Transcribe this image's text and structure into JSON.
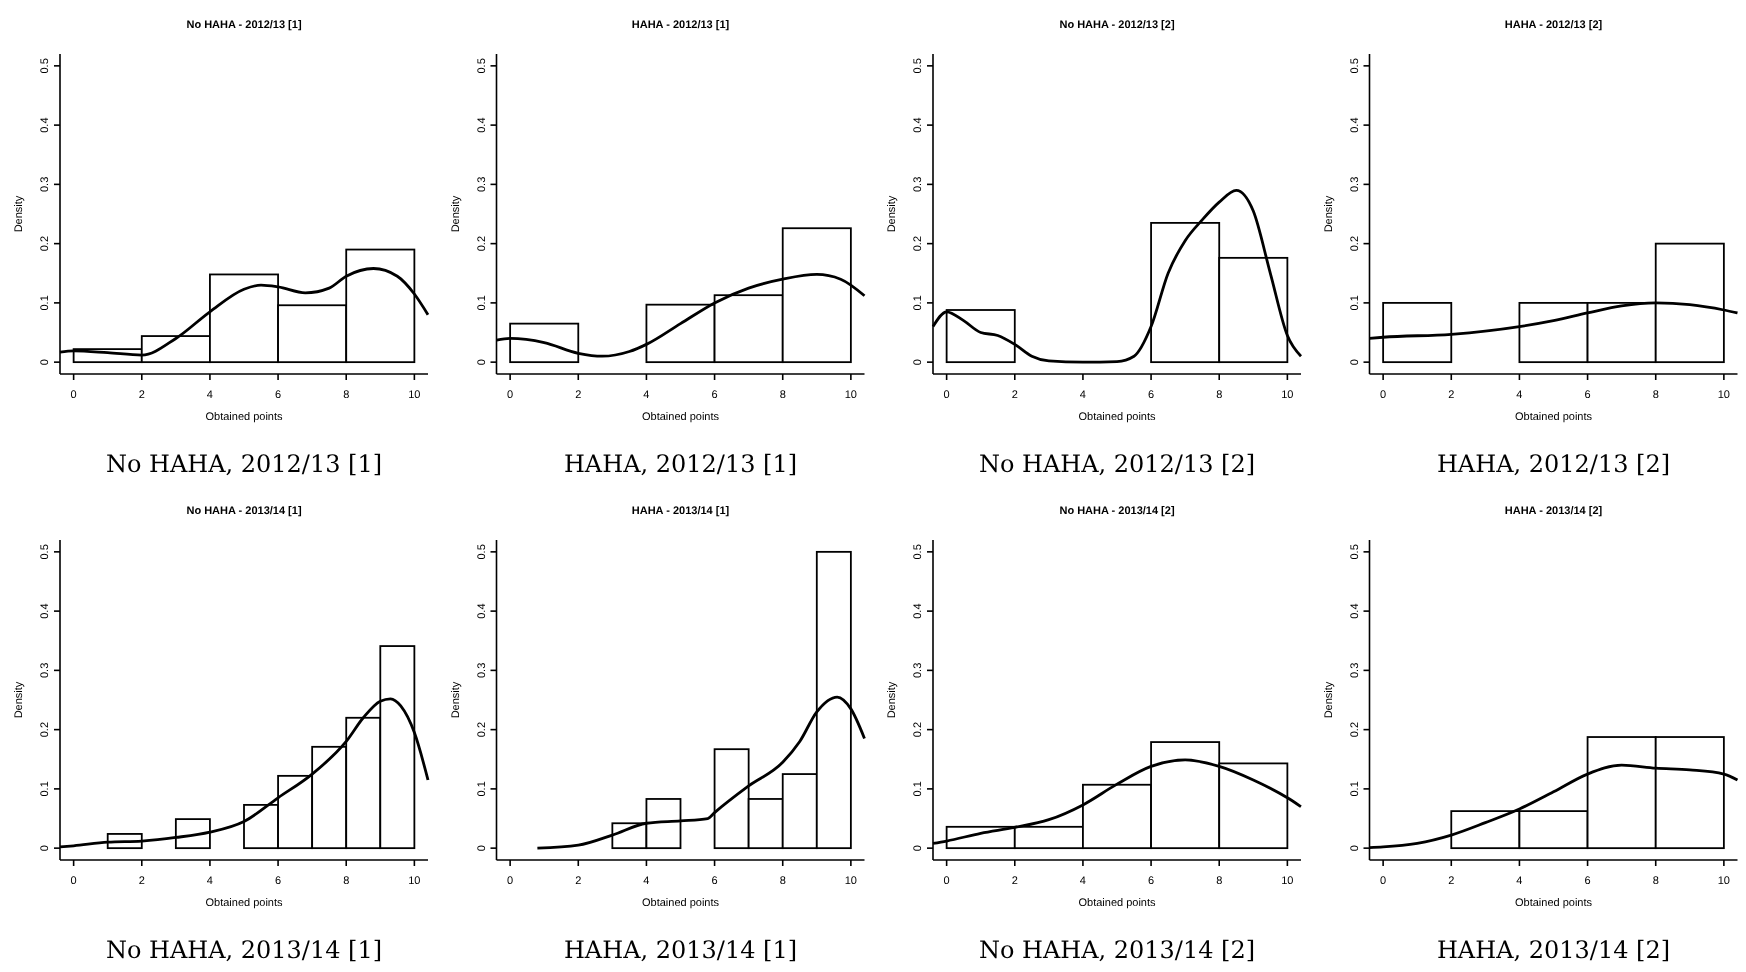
{
  "chart_data": [
    {
      "type": "histogram",
      "title": "No HAHA - 2012/13 [1]",
      "xlabel": "Obtained points",
      "ylabel": "Density",
      "annotations": [
        "No HAHA, 2012/13 [1]"
      ],
      "xlim": [
        -0.4,
        10.4
      ],
      "ylim": [
        -0.02,
        0.52
      ],
      "xticks": [
        0,
        2,
        4,
        6,
        8,
        10
      ],
      "yticks": [
        0,
        0.1,
        0.2,
        0.3,
        0.4,
        0.5
      ],
      "color": "#ffffff",
      "bins": [
        0,
        2,
        4,
        6,
        8,
        10
      ],
      "values": [
        0.022,
        0.044,
        0.148,
        0.096,
        0.19
      ],
      "series": [
        {
          "type": "line",
          "color": "#000000",
          "x": [
            -0.4,
            0,
            1,
            2,
            3,
            4,
            5,
            5.5,
            6,
            6.8,
            7.5,
            8,
            8.8,
            9.5,
            10,
            10.4
          ],
          "values": [
            0.017,
            0.019,
            0.016,
            0.012,
            0.04,
            0.085,
            0.123,
            0.13,
            0.127,
            0.117,
            0.125,
            0.145,
            0.158,
            0.145,
            0.115,
            0.08
          ]
        }
      ]
    },
    {
      "type": "histogram",
      "title": "HAHA - 2012/13 [1]",
      "xlabel": "Obtained points",
      "ylabel": "Density",
      "annotations": [
        "HAHA, 2012/13 [1]"
      ],
      "xlim": [
        -0.4,
        10.4
      ],
      "ylim": [
        -0.02,
        0.52
      ],
      "xticks": [
        0,
        2,
        4,
        6,
        8,
        10
      ],
      "yticks": [
        0,
        0.1,
        0.2,
        0.3,
        0.4,
        0.5
      ],
      "color": "#ffffff",
      "bins": [
        0,
        2,
        4,
        6,
        8,
        10
      ],
      "values": [
        0.065,
        0,
        0.097,
        0.113,
        0.226
      ],
      "series": [
        {
          "type": "line",
          "color": "#000000",
          "x": [
            -0.4,
            0,
            1,
            2,
            2.7,
            3.5,
            4,
            5,
            6,
            7,
            8,
            9,
            9.7,
            10.4
          ],
          "values": [
            0.037,
            0.04,
            0.033,
            0.015,
            0.01,
            0.018,
            0.03,
            0.065,
            0.1,
            0.125,
            0.14,
            0.148,
            0.14,
            0.112
          ]
        }
      ]
    },
    {
      "type": "histogram",
      "title": "No HAHA - 2012/13 [2]",
      "xlabel": "Obtained points",
      "ylabel": "Density",
      "annotations": [
        "No HAHA, 2012/13 [2]"
      ],
      "xlim": [
        -0.4,
        10.4
      ],
      "ylim": [
        -0.02,
        0.52
      ],
      "xticks": [
        0,
        2,
        4,
        6,
        8,
        10
      ],
      "yticks": [
        0,
        0.1,
        0.2,
        0.3,
        0.4,
        0.5
      ],
      "color": "#ffffff",
      "bins": [
        0,
        2,
        4,
        6,
        8,
        10
      ],
      "values": [
        0.088,
        0,
        0,
        0.235,
        0.176
      ],
      "series": [
        {
          "type": "line",
          "color": "#000000",
          "x": [
            -0.4,
            0,
            0.5,
            1,
            1.5,
            2,
            2.5,
            3,
            4,
            5,
            5.5,
            6,
            6.5,
            7,
            7.5,
            8,
            8.5,
            9,
            9.5,
            10,
            10.4
          ],
          "values": [
            0.06,
            0.085,
            0.07,
            0.05,
            0.045,
            0.03,
            0.01,
            0.002,
            0,
            0.001,
            0.01,
            0.06,
            0.15,
            0.205,
            0.24,
            0.27,
            0.29,
            0.255,
            0.15,
            0.045,
            0.01
          ]
        }
      ]
    },
    {
      "type": "histogram",
      "title": "HAHA - 2012/13 [2]",
      "xlabel": "Obtained points",
      "ylabel": "Density",
      "annotations": [
        "HAHA, 2012/13 [2]"
      ],
      "xlim": [
        -0.4,
        10.4
      ],
      "ylim": [
        -0.02,
        0.52
      ],
      "xticks": [
        0,
        2,
        4,
        6,
        8,
        10
      ],
      "yticks": [
        0,
        0.1,
        0.2,
        0.3,
        0.4,
        0.5
      ],
      "color": "#ffffff",
      "bins": [
        0,
        2,
        4,
        6,
        8,
        10
      ],
      "values": [
        0.1,
        0,
        0.1,
        0.1,
        0.2
      ],
      "series": [
        {
          "type": "line",
          "color": "#000000",
          "x": [
            -0.4,
            0,
            2,
            4,
            5,
            6,
            7,
            8,
            9,
            10,
            10.4
          ],
          "values": [
            0.04,
            0.042,
            0.047,
            0.06,
            0.07,
            0.083,
            0.095,
            0.1,
            0.097,
            0.088,
            0.083
          ]
        }
      ]
    },
    {
      "type": "histogram",
      "title": "No HAHA - 2013/14 [1]",
      "xlabel": "Obtained points",
      "ylabel": "Density",
      "annotations": [
        "No HAHA, 2013/14 [1]"
      ],
      "xlim": [
        -0.4,
        10.4
      ],
      "ylim": [
        -0.02,
        0.52
      ],
      "xticks": [
        0,
        2,
        4,
        6,
        8,
        10
      ],
      "yticks": [
        0,
        0.1,
        0.2,
        0.3,
        0.4,
        0.5
      ],
      "color": "#ffffff",
      "bins": [
        1,
        2,
        3,
        4,
        5,
        6,
        7,
        8,
        9,
        10
      ],
      "values": [
        0.024,
        0,
        0.049,
        0,
        0.073,
        0.122,
        0.171,
        0.22,
        0.341
      ],
      "series": [
        {
          "type": "line",
          "color": "#000000",
          "x": [
            -0.4,
            0,
            1,
            2,
            3,
            4,
            5,
            6,
            7,
            8,
            8.5,
            9,
            9.3,
            9.6,
            10,
            10.4
          ],
          "values": [
            0.002,
            0.004,
            0.01,
            0.012,
            0.018,
            0.027,
            0.045,
            0.085,
            0.125,
            0.18,
            0.22,
            0.248,
            0.252,
            0.24,
            0.195,
            0.115
          ]
        }
      ]
    },
    {
      "type": "histogram",
      "title": "HAHA - 2013/14 [1]",
      "xlabel": "Obtained points",
      "ylabel": "Density",
      "annotations": [
        "HAHA, 2013/14 [1]"
      ],
      "xlim": [
        -0.4,
        10.4
      ],
      "ylim": [
        -0.02,
        0.52
      ],
      "xticks": [
        0,
        2,
        4,
        6,
        8,
        10
      ],
      "yticks": [
        0,
        0.1,
        0.2,
        0.3,
        0.4,
        0.5
      ],
      "color": "#ffffff",
      "bins": [
        3,
        4,
        5,
        6,
        7,
        8,
        9,
        10
      ],
      "values": [
        0.042,
        0.083,
        0,
        0.167,
        0.083,
        0.125,
        0.5
      ],
      "series": [
        {
          "type": "line",
          "color": "#000000",
          "x": [
            0.8,
            2,
            3,
            4,
            5,
            5.8,
            6,
            7,
            8,
            8.5,
            9,
            9.6,
            10,
            10.4
          ],
          "values": [
            0,
            0.005,
            0.022,
            0.042,
            0.046,
            0.05,
            0.06,
            0.105,
            0.145,
            0.18,
            0.23,
            0.255,
            0.235,
            0.185
          ]
        }
      ]
    },
    {
      "type": "histogram",
      "title": "No HAHA - 2013/14 [2]",
      "xlabel": "Obtained points",
      "ylabel": "Density",
      "annotations": [
        "No HAHA, 2013/14 [2]"
      ],
      "xlim": [
        -0.4,
        10.4
      ],
      "ylim": [
        -0.02,
        0.52
      ],
      "xticks": [
        0,
        2,
        4,
        6,
        8,
        10
      ],
      "yticks": [
        0,
        0.1,
        0.2,
        0.3,
        0.4,
        0.5
      ],
      "color": "#ffffff",
      "bins": [
        0,
        2,
        4,
        6,
        8,
        10
      ],
      "values": [
        0.036,
        0.036,
        0.107,
        0.179,
        0.143
      ],
      "series": [
        {
          "type": "line",
          "color": "#000000",
          "x": [
            -0.4,
            0,
            1,
            2,
            3,
            4,
            5,
            6,
            7,
            8,
            9,
            10,
            10.4
          ],
          "values": [
            0.008,
            0.012,
            0.025,
            0.035,
            0.048,
            0.073,
            0.108,
            0.138,
            0.149,
            0.138,
            0.115,
            0.085,
            0.07
          ]
        }
      ]
    },
    {
      "type": "histogram",
      "title": "HAHA - 2013/14 [2]",
      "xlabel": "Obtained points",
      "ylabel": "Density",
      "annotations": [
        "HAHA, 2013/14 [2]"
      ],
      "xlim": [
        -0.4,
        10.4
      ],
      "ylim": [
        -0.02,
        0.52
      ],
      "xticks": [
        0,
        2,
        4,
        6,
        8,
        10
      ],
      "yticks": [
        0,
        0.1,
        0.2,
        0.3,
        0.4,
        0.5
      ],
      "color": "#ffffff",
      "bins": [
        2,
        4,
        6,
        8,
        10
      ],
      "values": [
        0.0625,
        0.0625,
        0.1875,
        0.1875
      ],
      "series": [
        {
          "type": "line",
          "color": "#000000",
          "x": [
            -0.4,
            0,
            1,
            2,
            3,
            4,
            5,
            6,
            7,
            8,
            9,
            10,
            10.4
          ],
          "values": [
            0.001,
            0.002,
            0.008,
            0.022,
            0.043,
            0.066,
            0.095,
            0.125,
            0.14,
            0.135,
            0.132,
            0.125,
            0.115
          ]
        }
      ]
    }
  ]
}
